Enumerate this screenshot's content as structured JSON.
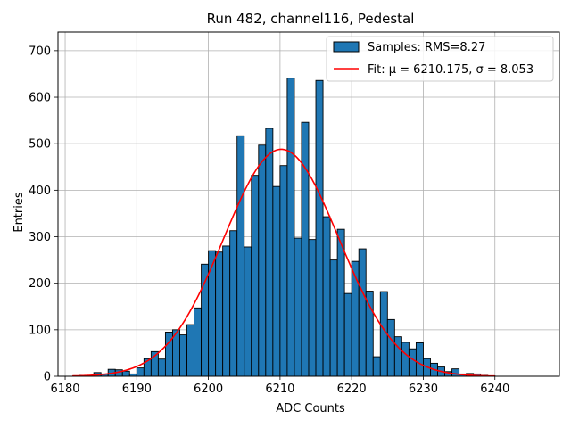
{
  "chart_data": {
    "type": "bar",
    "title": "Run 482, channel116, Pedestal",
    "xlabel": "ADC Counts",
    "ylabel": "Entries",
    "xlim": [
      6179,
      6249
    ],
    "ylim": [
      0,
      740
    ],
    "xticks": [
      "6180",
      "6190",
      "6200",
      "6210",
      "6220",
      "6230",
      "6240"
    ],
    "yticks": [
      "0",
      "100",
      "200",
      "300",
      "400",
      "500",
      "600",
      "700"
    ],
    "grid": true,
    "legend_position": "top-right",
    "colors": {
      "bar": "#1f77b4",
      "bar_edge": "#000000",
      "fit": "#ff0000"
    },
    "histogram": {
      "name": "Samples: RMS=8.27",
      "bin_edges_start": 6181,
      "bin_width": 1,
      "counts": [
        0,
        2,
        2,
        8,
        5,
        15,
        14,
        11,
        5,
        18,
        38,
        53,
        37,
        95,
        100,
        89,
        111,
        147,
        241,
        270,
        267,
        280,
        313,
        517,
        278,
        432,
        497,
        533,
        408,
        453,
        641,
        297,
        546,
        294,
        636,
        343,
        250,
        316,
        178,
        247,
        274,
        183,
        42,
        182,
        122,
        85,
        73,
        59,
        72,
        38,
        28,
        20,
        10,
        16,
        5,
        6,
        5,
        2,
        1
      ]
    },
    "fit": {
      "name": "Fit: μ = 6210.175, σ = 8.053",
      "mu": 6210.175,
      "sigma": 8.053,
      "amplitude": 488,
      "x_range": [
        6181,
        6240
      ]
    }
  }
}
